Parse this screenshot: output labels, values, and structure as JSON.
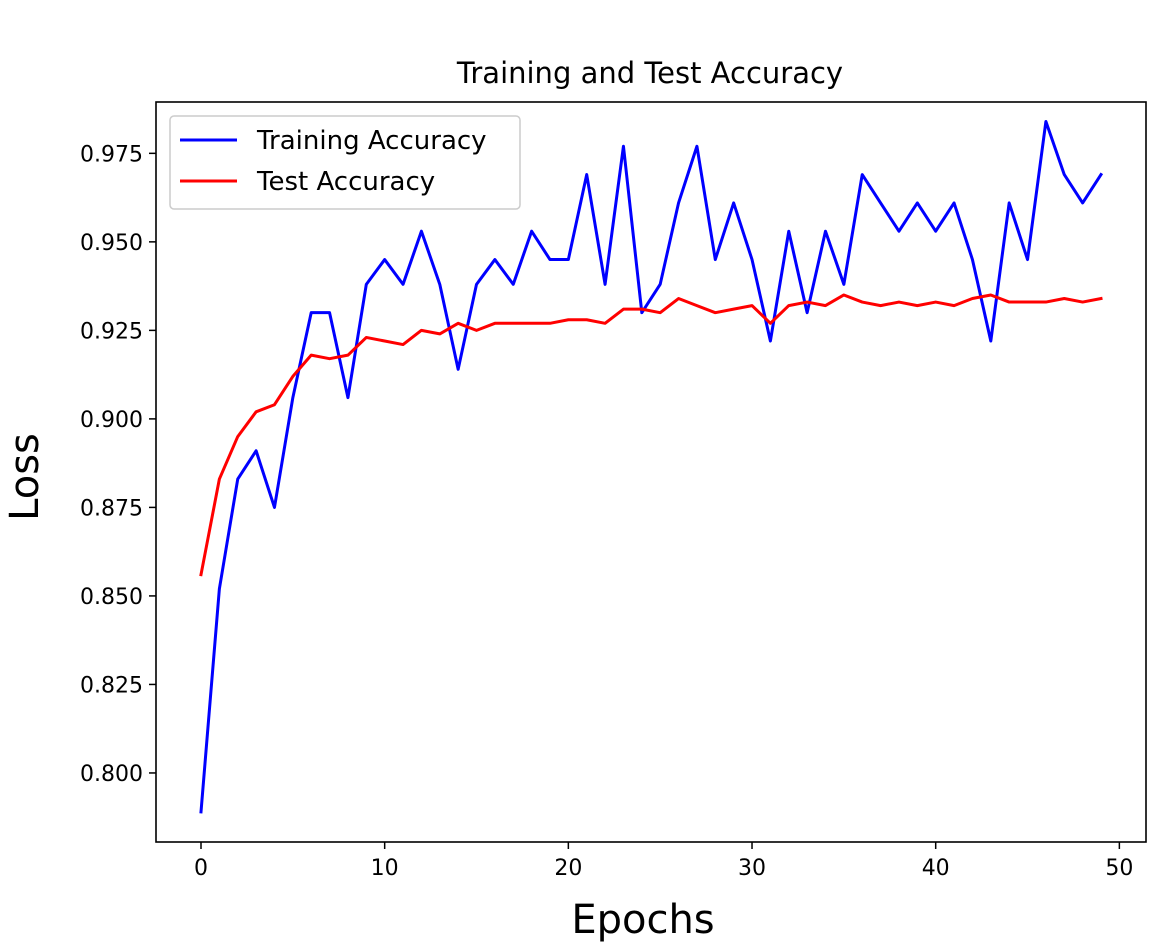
{
  "chart_data": {
    "type": "line",
    "title": "Training and Test Accuracy",
    "xlabel": "Epochs",
    "ylabel": "Loss",
    "xlim": [
      -2.45,
      51.45
    ],
    "ylim": [
      0.7805,
      0.9895
    ],
    "xticks": [
      0,
      10,
      20,
      30,
      40,
      50
    ],
    "yticks": [
      0.8,
      0.825,
      0.85,
      0.875,
      0.9,
      0.925,
      0.95,
      0.975
    ],
    "ytick_labels": [
      "0.800",
      "0.825",
      "0.850",
      "0.875",
      "0.900",
      "0.925",
      "0.950",
      "0.975"
    ],
    "grid": false,
    "legend": "upper-left",
    "x": [
      0,
      1,
      2,
      3,
      4,
      5,
      6,
      7,
      8,
      9,
      10,
      11,
      12,
      13,
      14,
      15,
      16,
      17,
      18,
      19,
      20,
      21,
      22,
      23,
      24,
      25,
      26,
      27,
      28,
      29,
      30,
      31,
      32,
      33,
      34,
      35,
      36,
      37,
      38,
      39,
      40,
      41,
      42,
      43,
      44,
      45,
      46,
      47,
      48,
      49
    ],
    "series": [
      {
        "name": "Training Accuracy",
        "color": "#0000ff",
        "values": [
          0.789,
          0.852,
          0.883,
          0.891,
          0.875,
          0.906,
          0.93,
          0.93,
          0.906,
          0.938,
          0.945,
          0.938,
          0.953,
          0.938,
          0.914,
          0.938,
          0.945,
          0.938,
          0.953,
          0.945,
          0.945,
          0.969,
          0.938,
          0.977,
          0.93,
          0.938,
          0.961,
          0.977,
          0.945,
          0.961,
          0.945,
          0.922,
          0.953,
          0.93,
          0.953,
          0.938,
          0.969,
          0.961,
          0.953,
          0.961,
          0.953,
          0.961,
          0.945,
          0.922,
          0.961,
          0.945,
          0.984,
          0.969,
          0.961,
          0.969
        ]
      },
      {
        "name": "Test Accuracy",
        "color": "#ff0000",
        "values": [
          0.856,
          0.883,
          0.895,
          0.902,
          0.904,
          0.912,
          0.918,
          0.917,
          0.918,
          0.923,
          0.922,
          0.921,
          0.925,
          0.924,
          0.927,
          0.925,
          0.927,
          0.927,
          0.927,
          0.927,
          0.928,
          0.928,
          0.927,
          0.931,
          0.931,
          0.93,
          0.934,
          0.932,
          0.93,
          0.931,
          0.932,
          0.927,
          0.932,
          0.933,
          0.932,
          0.935,
          0.933,
          0.932,
          0.933,
          0.932,
          0.933,
          0.932,
          0.934,
          0.935,
          0.933,
          0.933,
          0.933,
          0.934,
          0.933,
          0.934
        ]
      }
    ]
  }
}
